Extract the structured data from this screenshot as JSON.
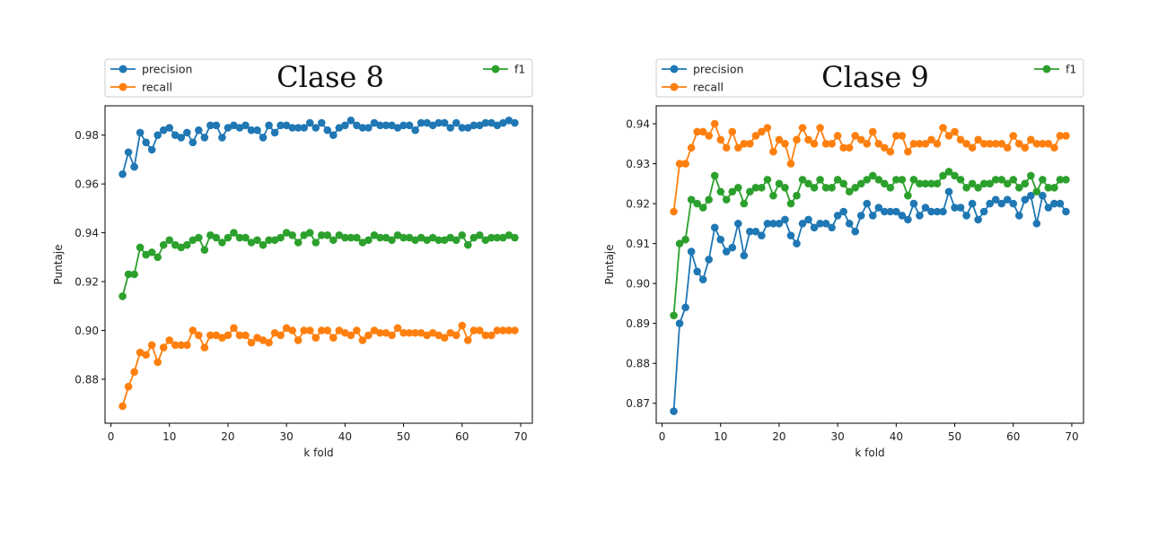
{
  "chart_data": [
    {
      "type": "line",
      "title": "Clase 8",
      "xlabel": "k fold",
      "ylabel": "Puntaje",
      "xlim": [
        -1,
        72
      ],
      "ylim": [
        0.862,
        0.992
      ],
      "xticks": [
        0,
        10,
        20,
        30,
        40,
        50,
        60,
        70
      ],
      "yticks": [
        0.88,
        0.9,
        0.92,
        0.94,
        0.96,
        0.98
      ],
      "legend": "top",
      "grid": false,
      "x": [
        2,
        3,
        4,
        5,
        6,
        7,
        8,
        9,
        10,
        11,
        12,
        13,
        14,
        15,
        16,
        17,
        18,
        19,
        20,
        21,
        22,
        23,
        24,
        25,
        26,
        27,
        28,
        29,
        30,
        31,
        32,
        33,
        34,
        35,
        36,
        37,
        38,
        39,
        40,
        41,
        42,
        43,
        44,
        45,
        46,
        47,
        48,
        49,
        50,
        51,
        52,
        53,
        54,
        55,
        56,
        57,
        58,
        59,
        60,
        61,
        62,
        63,
        64,
        65,
        66,
        67,
        68,
        69
      ],
      "series": [
        {
          "name": "precision",
          "color": "#1f77b4",
          "values": [
            0.964,
            0.973,
            0.967,
            0.981,
            0.977,
            0.974,
            0.98,
            0.982,
            0.983,
            0.98,
            0.979,
            0.981,
            0.977,
            0.982,
            0.979,
            0.984,
            0.984,
            0.979,
            0.983,
            0.984,
            0.983,
            0.984,
            0.982,
            0.982,
            0.979,
            0.984,
            0.981,
            0.984,
            0.984,
            0.983,
            0.983,
            0.983,
            0.985,
            0.983,
            0.985,
            0.982,
            0.98,
            0.983,
            0.984,
            0.986,
            0.984,
            0.983,
            0.983,
            0.985,
            0.984,
            0.984,
            0.984,
            0.983,
            0.984,
            0.984,
            0.982,
            0.985,
            0.985,
            0.984,
            0.985,
            0.985,
            0.983,
            0.985,
            0.983,
            0.983,
            0.984,
            0.984,
            0.985,
            0.985,
            0.984,
            0.985,
            0.986,
            0.985
          ]
        },
        {
          "name": "recall",
          "color": "#ff7f0e",
          "values": [
            0.869,
            0.877,
            0.883,
            0.891,
            0.89,
            0.894,
            0.887,
            0.893,
            0.896,
            0.894,
            0.894,
            0.894,
            0.9,
            0.898,
            0.893,
            0.898,
            0.898,
            0.897,
            0.898,
            0.901,
            0.898,
            0.898,
            0.895,
            0.897,
            0.896,
            0.895,
            0.899,
            0.898,
            0.901,
            0.9,
            0.896,
            0.9,
            0.9,
            0.897,
            0.9,
            0.9,
            0.897,
            0.9,
            0.899,
            0.898,
            0.9,
            0.896,
            0.898,
            0.9,
            0.899,
            0.899,
            0.898,
            0.901,
            0.899,
            0.899,
            0.899,
            0.899,
            0.898,
            0.899,
            0.898,
            0.897,
            0.899,
            0.898,
            0.902,
            0.896,
            0.9,
            0.9,
            0.898,
            0.898,
            0.9,
            0.9,
            0.9,
            0.9
          ]
        },
        {
          "name": "f1",
          "color": "#2ca02c",
          "values": [
            0.914,
            0.923,
            0.923,
            0.934,
            0.931,
            0.932,
            0.93,
            0.935,
            0.937,
            0.935,
            0.934,
            0.935,
            0.937,
            0.938,
            0.933,
            0.939,
            0.938,
            0.936,
            0.938,
            0.94,
            0.938,
            0.938,
            0.936,
            0.937,
            0.935,
            0.937,
            0.937,
            0.938,
            0.94,
            0.939,
            0.936,
            0.939,
            0.94,
            0.936,
            0.939,
            0.939,
            0.937,
            0.939,
            0.938,
            0.938,
            0.938,
            0.936,
            0.937,
            0.939,
            0.938,
            0.938,
            0.937,
            0.939,
            0.938,
            0.938,
            0.937,
            0.938,
            0.937,
            0.938,
            0.937,
            0.937,
            0.938,
            0.937,
            0.939,
            0.935,
            0.938,
            0.939,
            0.937,
            0.938,
            0.938,
            0.938,
            0.939,
            0.938
          ]
        }
      ]
    },
    {
      "type": "line",
      "title": "Clase 9",
      "xlabel": "k fold",
      "ylabel": "Puntaje",
      "xlim": [
        -1,
        72
      ],
      "ylim": [
        0.865,
        0.9445
      ],
      "xticks": [
        0,
        10,
        20,
        30,
        40,
        50,
        60,
        70
      ],
      "yticks": [
        0.87,
        0.88,
        0.89,
        0.9,
        0.91,
        0.92,
        0.93,
        0.94
      ],
      "legend": "top",
      "grid": false,
      "x": [
        2,
        3,
        4,
        5,
        6,
        7,
        8,
        9,
        10,
        11,
        12,
        13,
        14,
        15,
        16,
        17,
        18,
        19,
        20,
        21,
        22,
        23,
        24,
        25,
        26,
        27,
        28,
        29,
        30,
        31,
        32,
        33,
        34,
        35,
        36,
        37,
        38,
        39,
        40,
        41,
        42,
        43,
        44,
        45,
        46,
        47,
        48,
        49,
        50,
        51,
        52,
        53,
        54,
        55,
        56,
        57,
        58,
        59,
        60,
        61,
        62,
        63,
        64,
        65,
        66,
        67,
        68,
        69
      ],
      "series": [
        {
          "name": "precision",
          "color": "#1f77b4",
          "values": [
            0.868,
            0.89,
            0.894,
            0.908,
            0.903,
            0.901,
            0.906,
            0.914,
            0.911,
            0.908,
            0.909,
            0.915,
            0.907,
            0.913,
            0.913,
            0.912,
            0.915,
            0.915,
            0.915,
            0.916,
            0.912,
            0.91,
            0.915,
            0.916,
            0.914,
            0.915,
            0.915,
            0.914,
            0.917,
            0.918,
            0.915,
            0.913,
            0.917,
            0.92,
            0.917,
            0.919,
            0.918,
            0.918,
            0.918,
            0.917,
            0.916,
            0.92,
            0.917,
            0.919,
            0.918,
            0.918,
            0.918,
            0.923,
            0.919,
            0.919,
            0.917,
            0.92,
            0.916,
            0.918,
            0.92,
            0.921,
            0.92,
            0.921,
            0.92,
            0.917,
            0.921,
            0.922,
            0.915,
            0.922,
            0.919,
            0.92,
            0.92,
            0.918
          ]
        },
        {
          "name": "recall",
          "color": "#ff7f0e",
          "values": [
            0.918,
            0.93,
            0.93,
            0.934,
            0.938,
            0.938,
            0.937,
            0.94,
            0.936,
            0.934,
            0.938,
            0.934,
            0.935,
            0.935,
            0.937,
            0.938,
            0.939,
            0.933,
            0.936,
            0.935,
            0.93,
            0.936,
            0.939,
            0.936,
            0.935,
            0.939,
            0.935,
            0.935,
            0.937,
            0.934,
            0.934,
            0.937,
            0.936,
            0.935,
            0.938,
            0.935,
            0.934,
            0.933,
            0.937,
            0.937,
            0.933,
            0.935,
            0.935,
            0.935,
            0.936,
            0.935,
            0.939,
            0.937,
            0.938,
            0.936,
            0.935,
            0.934,
            0.936,
            0.935,
            0.935,
            0.935,
            0.935,
            0.934,
            0.937,
            0.935,
            0.934,
            0.936,
            0.935,
            0.935,
            0.935,
            0.934,
            0.937,
            0.937
          ]
        },
        {
          "name": "f1",
          "color": "#2ca02c",
          "values": [
            0.892,
            0.91,
            0.911,
            0.921,
            0.92,
            0.919,
            0.921,
            0.927,
            0.923,
            0.921,
            0.923,
            0.924,
            0.92,
            0.923,
            0.924,
            0.924,
            0.926,
            0.922,
            0.925,
            0.924,
            0.92,
            0.922,
            0.926,
            0.925,
            0.924,
            0.926,
            0.924,
            0.924,
            0.926,
            0.925,
            0.923,
            0.924,
            0.925,
            0.926,
            0.927,
            0.926,
            0.925,
            0.924,
            0.926,
            0.926,
            0.922,
            0.926,
            0.925,
            0.925,
            0.925,
            0.925,
            0.927,
            0.928,
            0.927,
            0.926,
            0.924,
            0.925,
            0.924,
            0.925,
            0.925,
            0.926,
            0.926,
            0.925,
            0.926,
            0.924,
            0.925,
            0.927,
            0.923,
            0.926,
            0.924,
            0.924,
            0.926,
            0.926
          ]
        }
      ]
    }
  ]
}
